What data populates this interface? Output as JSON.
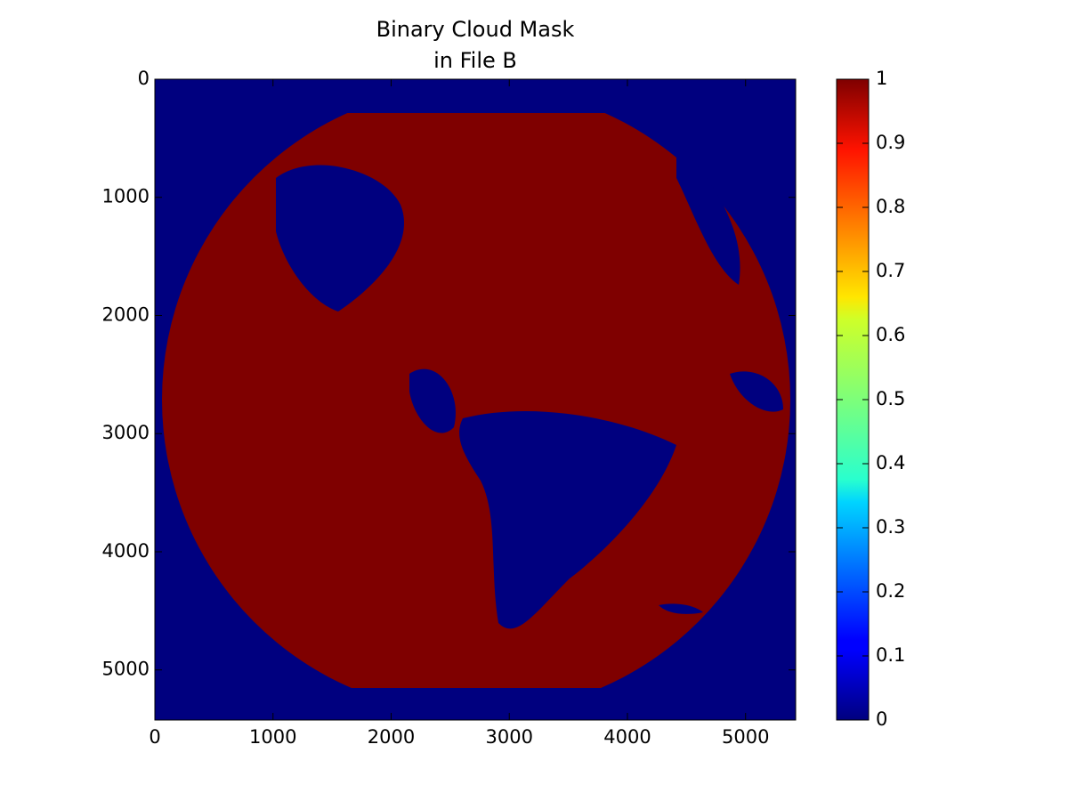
{
  "chart_data": {
    "type": "image",
    "title": [
      "Binary Cloud Mask",
      "in File B"
    ],
    "colormap": "jet",
    "xlim": [
      0,
      5424
    ],
    "xticks": [
      0,
      1000,
      2000,
      3000,
      4000,
      5000
    ],
    "ylim": [
      0,
      5424
    ],
    "yticks": [
      0,
      1000,
      2000,
      3000,
      4000,
      5000
    ],
    "clim": [
      0,
      1
    ],
    "cticks": [
      0,
      0.1,
      0.2,
      0.3,
      0.4,
      0.5,
      0.6,
      0.7,
      0.8,
      0.9,
      1
    ]
  }
}
